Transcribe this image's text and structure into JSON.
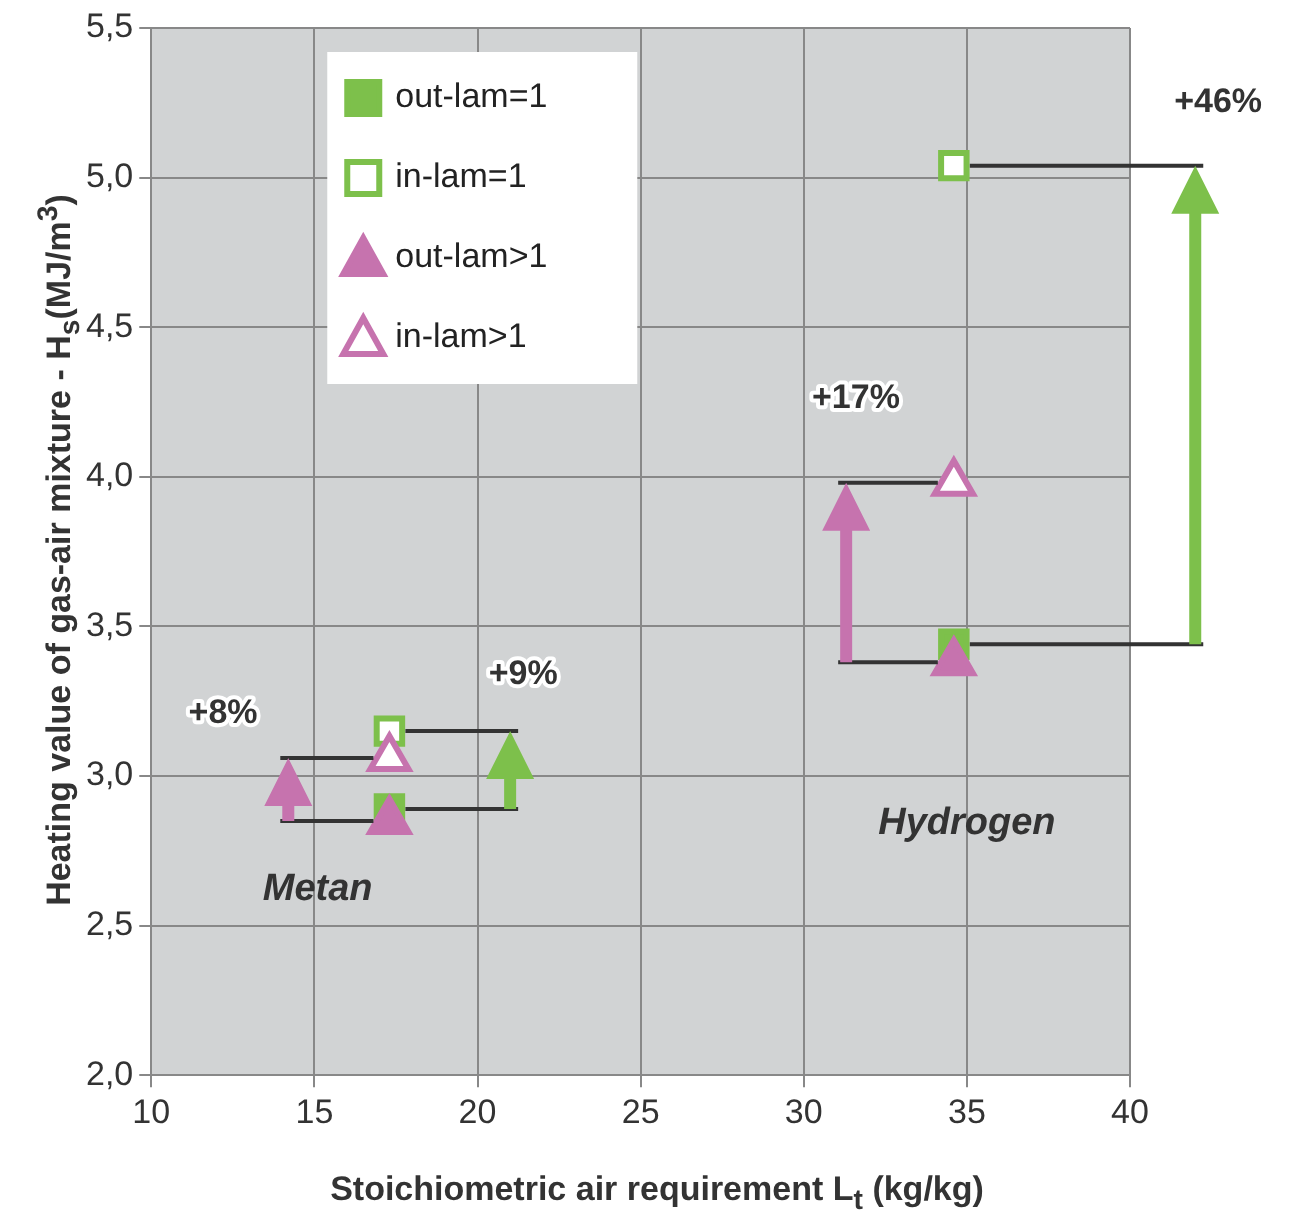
{
  "chart_data": {
    "type": "scatter",
    "xlabel": "Stoichiometric air requirement L$_{t}$ (kg/kg)",
    "ylabel": "Heating value of gas-air mixture - H$_{s}$(MJ/m$^{3}$)",
    "series": [
      {
        "name": "out-lam=1",
        "color": "#7dc04b",
        "marker": "square",
        "values": [
          2.89,
          3.44
        ]
      },
      {
        "name": "in-lam=1",
        "color": "#7dc04b",
        "marker": "square",
        "values": [
          3.15,
          5.04
        ]
      },
      {
        "name": "out-lam>1",
        "color": "#c673ae",
        "marker": "triangle",
        "values": [
          2.85,
          3.38
        ]
      },
      {
        "name": "in-lam>1",
        "color": "#c673ae",
        "marker": "triangle",
        "values": [
          3.06,
          3.98
        ]
      }
    ],
    "x": [
      17.3,
      34.6
    ],
    "xlim": [
      10,
      40
    ],
    "xticks": [
      10,
      15,
      20,
      25,
      30,
      35,
      40
    ],
    "ylim": [
      2.0,
      5.5
    ],
    "yticks": [
      {
        "value": 2.0,
        "label": "2,0"
      },
      {
        "value": 2.5,
        "label": "2,5"
      },
      {
        "value": 3.0,
        "label": "3,0"
      },
      {
        "value": 3.5,
        "label": "3,5"
      },
      {
        "value": 4.0,
        "label": "4,0"
      },
      {
        "value": 4.5,
        "label": "4,5"
      },
      {
        "value": 5.0,
        "label": "5,0"
      },
      {
        "value": 5.5,
        "label": "5,5"
      }
    ],
    "grid": true,
    "legend": "top left",
    "annotations": [
      {
        "text": "+8%",
        "x": 17.3,
        "y": 3.06
      },
      {
        "text": "+9%",
        "x": 17.3,
        "y": 3.15
      },
      "+17%",
      "+46%",
      "Metan",
      "Hydrogen"
    ]
  }
}
